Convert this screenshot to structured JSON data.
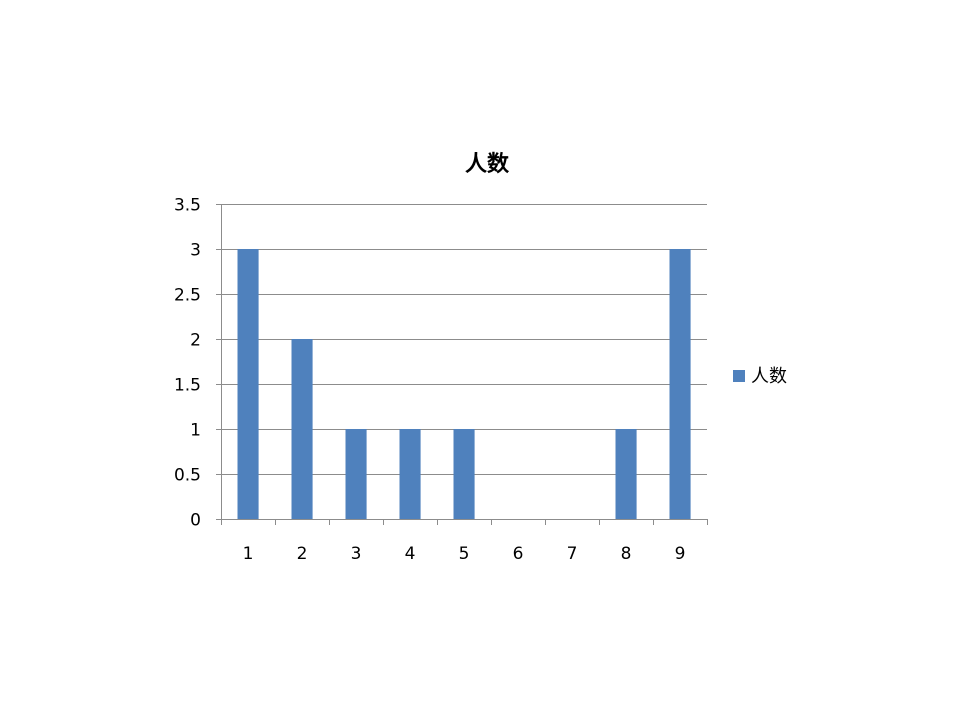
{
  "chart_data": {
    "type": "bar",
    "title": "人数",
    "xlabel": "",
    "ylabel": "",
    "categories": [
      "1",
      "2",
      "3",
      "4",
      "5",
      "6",
      "7",
      "8",
      "9"
    ],
    "series": [
      {
        "name": "人数",
        "values": [
          3,
          2,
          1,
          1,
          1,
          0,
          0,
          1,
          3
        ],
        "color": "#4f81bd"
      }
    ],
    "ylim": [
      0,
      3.5
    ],
    "yticks": [
      "0",
      "0.5",
      "1",
      "1.5",
      "2",
      "2.5",
      "3",
      "3.5"
    ],
    "grid": true,
    "legend_position": "right"
  }
}
